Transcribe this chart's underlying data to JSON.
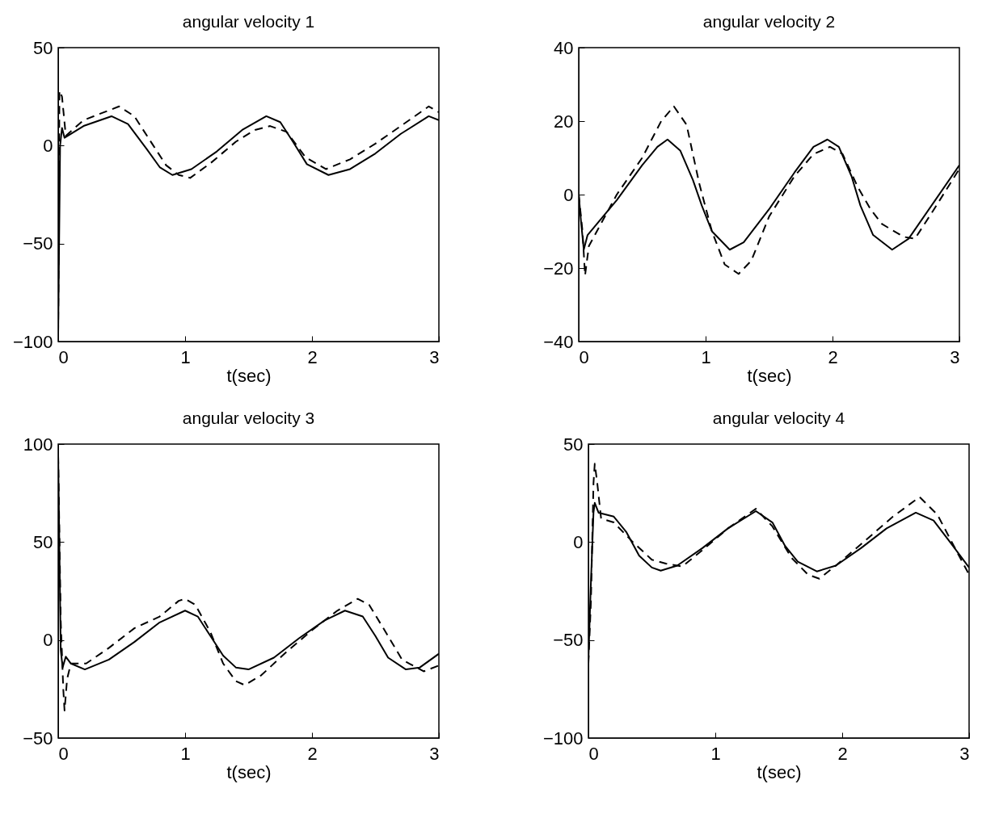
{
  "chart_data": [
    {
      "type": "line",
      "title": "angular velocity 1",
      "xlabel": "t(sec)",
      "xlim": [
        0,
        3
      ],
      "xticks": [
        0,
        1,
        2,
        3
      ],
      "ylim": [
        -100,
        50
      ],
      "yticks": [
        -100,
        -50,
        0,
        50
      ],
      "series": [
        {
          "color": "#000000",
          "line_style": "solid",
          "x": [
            0,
            0.015,
            0.03,
            0.05,
            0.2,
            0.42,
            0.55,
            0.7,
            0.8,
            0.9,
            1.05,
            1.25,
            1.45,
            1.64,
            1.75,
            1.85,
            1.96,
            2.13,
            2.3,
            2.5,
            2.7,
            2.92,
            3.0
          ],
          "values": [
            -96,
            0,
            9,
            4,
            10,
            15,
            11,
            -2,
            -11,
            -15,
            -12,
            -3,
            8,
            15,
            12,
            2,
            -9.5,
            -15,
            -12,
            -4,
            6,
            15,
            13
          ]
        },
        {
          "color": "#000000",
          "line_style": "dashed",
          "x": [
            0,
            0.01,
            0.03,
            0.06,
            0.2,
            0.48,
            0.6,
            0.75,
            0.85,
            0.95,
            1.04,
            1.2,
            1.4,
            1.55,
            1.67,
            1.8,
            1.95,
            2.11,
            2.3,
            2.5,
            2.7,
            2.92,
            3.0
          ],
          "values": [
            -96,
            28,
            25,
            5,
            13,
            20,
            15,
            0,
            -10,
            -15,
            -16.5,
            -9,
            2,
            8,
            10,
            7,
            -6,
            -12,
            -7,
            1,
            10,
            20,
            17
          ]
        }
      ]
    },
    {
      "type": "line",
      "title": "angular velocity 2",
      "xlabel": "t(sec)",
      "xlim": [
        0,
        3
      ],
      "xticks": [
        0,
        1,
        2,
        3
      ],
      "ylim": [
        -40,
        40
      ],
      "yticks": [
        -40,
        -20,
        0,
        20,
        40
      ],
      "series": [
        {
          "color": "#000000",
          "line_style": "solid",
          "x": [
            0,
            0.02,
            0.04,
            0.07,
            0.3,
            0.5,
            0.62,
            0.7,
            0.8,
            0.9,
            0.97,
            1.05,
            1.19,
            1.3,
            1.5,
            1.7,
            1.85,
            1.96,
            2.05,
            2.15,
            2.22,
            2.32,
            2.47,
            2.6,
            2.8,
            3.0
          ],
          "values": [
            0,
            -8,
            -15,
            -11,
            -1.5,
            8,
            13,
            15,
            12,
            4,
            -3,
            -10,
            -15,
            -13,
            -4,
            6,
            13,
            15,
            13,
            5,
            -3,
            -11,
            -15,
            -12,
            -2,
            8
          ]
        },
        {
          "color": "#000000",
          "line_style": "dashed",
          "x": [
            0,
            0.03,
            0.05,
            0.08,
            0.3,
            0.5,
            0.65,
            0.75,
            0.85,
            0.95,
            1.05,
            1.15,
            1.26,
            1.36,
            1.5,
            1.7,
            1.85,
            1.98,
            2.08,
            2.2,
            2.3,
            2.39,
            2.56,
            2.65,
            2.8,
            3.0
          ],
          "values": [
            0,
            -10,
            -22,
            -14,
            0,
            10,
            20,
            24,
            19,
            3,
            -10,
            -19,
            -21.6,
            -18,
            -6,
            5,
            11,
            13,
            11,
            2,
            -4,
            -8,
            -11.5,
            -12,
            -4,
            7
          ]
        }
      ]
    },
    {
      "type": "line",
      "title": "angular velocity 3",
      "xlabel": "t(sec)",
      "xlim": [
        0,
        3
      ],
      "xticks": [
        0,
        1,
        2,
        3
      ],
      "ylim": [
        -50,
        100
      ],
      "yticks": [
        -50,
        0,
        50,
        100
      ],
      "series": [
        {
          "color": "#000000",
          "line_style": "solid",
          "x": [
            0,
            0.02,
            0.035,
            0.06,
            0.1,
            0.21,
            0.4,
            0.6,
            0.8,
            1.0,
            1.1,
            1.2,
            1.3,
            1.4,
            1.5,
            1.7,
            1.9,
            2.1,
            2.26,
            2.4,
            2.5,
            2.6,
            2.74,
            2.85,
            3.0
          ],
          "values": [
            94,
            -5,
            -14,
            -8.5,
            -12,
            -15,
            -10,
            -1,
            9,
            15,
            12,
            2,
            -8,
            -14,
            -15,
            -9,
            1,
            10,
            15,
            12,
            2,
            -9,
            -15,
            -14,
            -7
          ]
        },
        {
          "color": "#000000",
          "line_style": "dashed",
          "x": [
            0,
            0.02,
            0.04,
            0.05,
            0.07,
            0.1,
            0.22,
            0.4,
            0.6,
            0.8,
            0.95,
            1.0,
            1.08,
            1.2,
            1.3,
            1.4,
            1.47,
            1.6,
            1.8,
            2.0,
            2.2,
            2.36,
            2.45,
            2.6,
            2.71,
            2.88,
            3.0
          ],
          "values": [
            94,
            10,
            -25,
            -36,
            -20,
            -12,
            -12,
            -4,
            6,
            12,
            20,
            21,
            18,
            4,
            -12,
            -21,
            -23,
            -18,
            -6,
            5,
            15,
            21,
            18,
            2,
            -10,
            -16,
            -13
          ]
        }
      ]
    },
    {
      "type": "line",
      "title": "angular velocity 4",
      "xlabel": "t(sec)",
      "xlim": [
        0,
        3
      ],
      "xticks": [
        0,
        1,
        2,
        3
      ],
      "ylim": [
        -100,
        50
      ],
      "yticks": [
        -100,
        -50,
        0,
        50
      ],
      "series": [
        {
          "color": "#000000",
          "line_style": "solid",
          "x": [
            0,
            0.02,
            0.04,
            0.05,
            0.08,
            0.2,
            0.3,
            0.4,
            0.5,
            0.57,
            0.7,
            0.9,
            1.1,
            1.32,
            1.45,
            1.55,
            1.65,
            1.8,
            1.95,
            2.15,
            2.35,
            2.58,
            2.72,
            2.85,
            3.0
          ],
          "values": [
            -60,
            -20,
            15,
            20,
            15,
            13,
            5,
            -7,
            -13,
            -14.6,
            -12,
            -3,
            7,
            15.8,
            10,
            -2,
            -10,
            -15,
            -12,
            -3,
            7,
            15,
            11,
            0,
            -13
          ]
        },
        {
          "color": "#000000",
          "line_style": "dashed",
          "x": [
            0,
            0.02,
            0.04,
            0.05,
            0.07,
            0.1,
            0.2,
            0.35,
            0.5,
            0.61,
            0.74,
            0.9,
            1.1,
            1.32,
            1.45,
            1.6,
            1.73,
            1.82,
            1.95,
            2.15,
            2.4,
            2.61,
            2.75,
            2.88,
            3.0
          ],
          "values": [
            -62,
            -30,
            30,
            40,
            30,
            12,
            10,
            0,
            -9,
            -11,
            -12.5,
            -4,
            7,
            17,
            8,
            -8,
            -16.6,
            -18.7,
            -12,
            -1,
            13,
            23,
            14,
            -2,
            -16.6
          ]
        }
      ]
    }
  ]
}
